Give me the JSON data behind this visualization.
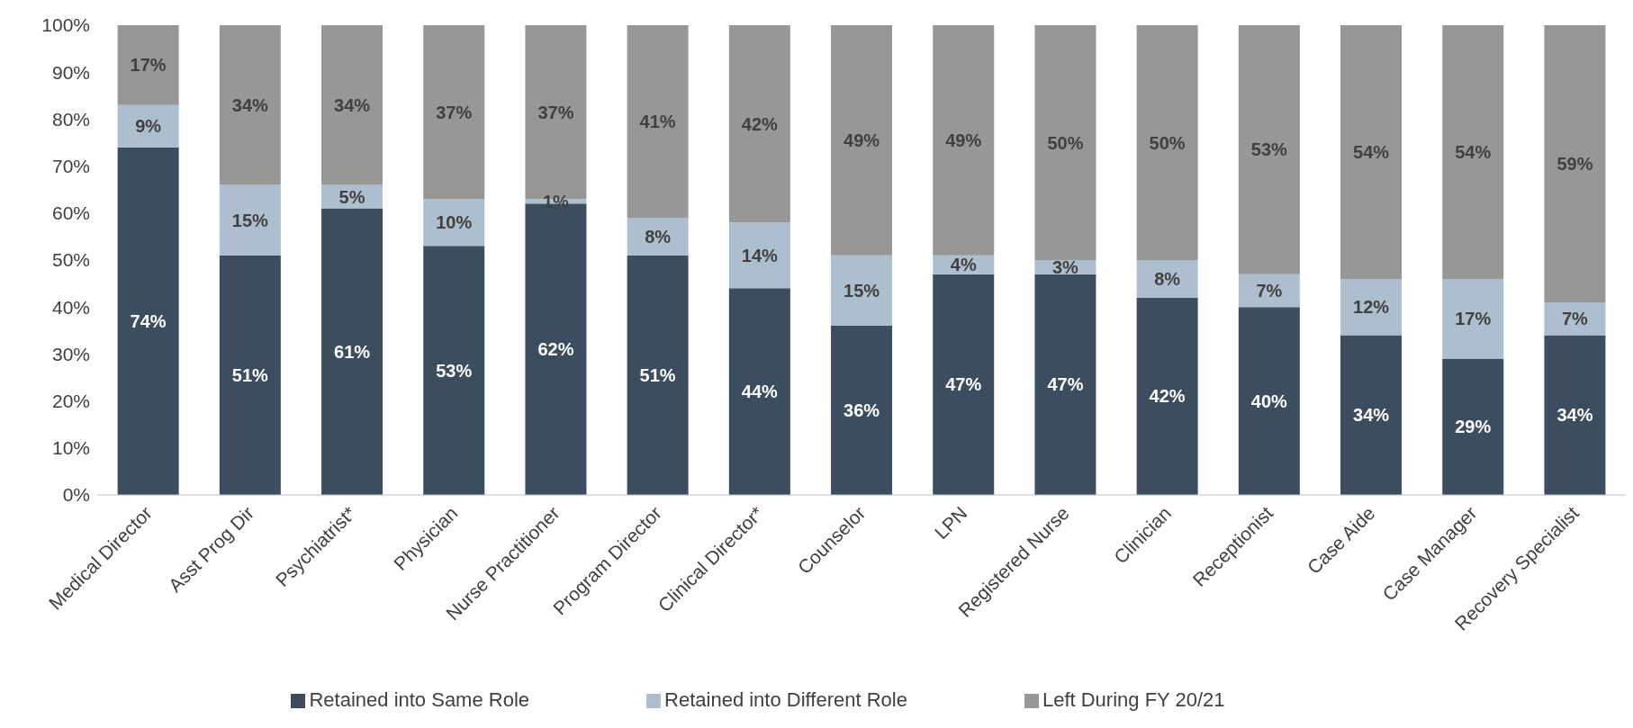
{
  "chart_data": {
    "type": "bar",
    "stacked": true,
    "categories": [
      "Medical Director",
      "Asst Prog Dir",
      "Psychiatrist*",
      "Physician",
      "Nurse Practitioner",
      "Program Director",
      "Clinical Director*",
      "Counselor",
      "LPN",
      "Registered Nurse",
      "Clinician",
      "Receptionist",
      "Case Aide",
      "Case Manager",
      "Recovery Specialist"
    ],
    "series": [
      {
        "name": "Retained into Same Role",
        "color": "#3b4d5f",
        "values": [
          74,
          51,
          61,
          53,
          62,
          51,
          44,
          36,
          47,
          47,
          42,
          40,
          34,
          29,
          34
        ],
        "value_labels": [
          "74%",
          "51%",
          "61%",
          "53%",
          "62%",
          "51%",
          "44%",
          "36%",
          "47%",
          "47%",
          "42%",
          "40%",
          "34%",
          "29%",
          "34%"
        ]
      },
      {
        "name": "Retained into Different Role",
        "color": "#adbfcf",
        "values": [
          9,
          15,
          5,
          10,
          1,
          8,
          14,
          15,
          4,
          3,
          8,
          7,
          12,
          17,
          7
        ],
        "value_labels": [
          "9%",
          "15%",
          "5%",
          "10%",
          "1%",
          "8%",
          "14%",
          "15%",
          "4%",
          "3%",
          "8%",
          "7%",
          "12%",
          "17%",
          "7%"
        ]
      },
      {
        "name": "Left During FY 20/21",
        "color": "#979797",
        "values": [
          17,
          34,
          34,
          37,
          37,
          41,
          42,
          49,
          49,
          50,
          50,
          53,
          54,
          54,
          59
        ],
        "value_labels": [
          "17%",
          "34%",
          "34%",
          "37%",
          "37%",
          "41%",
          "42%",
          "49%",
          "49%",
          "50%",
          "50%",
          "53%",
          "54%",
          "54%",
          "59%"
        ]
      }
    ],
    "ylim": [
      0,
      100
    ],
    "yticks": [
      {
        "value": 0,
        "label": "0%"
      },
      {
        "value": 10,
        "label": "10%"
      },
      {
        "value": 20,
        "label": "20%"
      },
      {
        "value": 30,
        "label": "30%"
      },
      {
        "value": 40,
        "label": "40%"
      },
      {
        "value": 50,
        "label": "50%"
      },
      {
        "value": 60,
        "label": "60%"
      },
      {
        "value": 70,
        "label": "70%"
      },
      {
        "value": 80,
        "label": "80%"
      },
      {
        "value": 90,
        "label": "90%"
      },
      {
        "value": 100,
        "label": "100%"
      }
    ],
    "grid": false,
    "legend": "bottom"
  }
}
